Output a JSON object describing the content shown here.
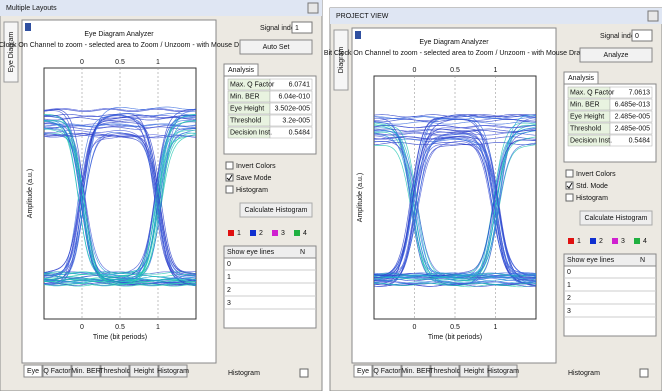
{
  "windows": [
    {
      "title": "Multiple Layouts",
      "side_tab": "Eye Diagram",
      "heading": "Eye Diagram Analyzer",
      "subtitle": "Bit Clock On Channel to zoom - selected area to Zoom / Unzoom - with Mouse Drag",
      "x_ticks": [
        "0",
        "0.5",
        "1"
      ],
      "x_axis_label": "Time (bit periods)",
      "y_axis_label": "Amplitude (a.u.)",
      "signal_index_label": "Signal index",
      "signal_index": "1",
      "button": "Auto Set",
      "analysis_tab": "Analysis",
      "results": [
        [
          "Max. Q Factor",
          "6.0741"
        ],
        [
          "Min. BER",
          "6.04e-010"
        ],
        [
          "Eye Height",
          "3.502e-005"
        ],
        [
          "Threshold",
          "3.2e-005"
        ],
        [
          "Decision Inst.",
          "0.5484"
        ]
      ],
      "checkboxes": [
        "Invert Colors",
        "Save Mode",
        "Histogram"
      ],
      "checked": [
        false,
        true,
        false
      ],
      "histogram_button": "Calculate Histogram",
      "legend": [
        "1",
        "2",
        "3",
        "4"
      ],
      "eye_table_header": [
        "Show eye lines",
        "N"
      ],
      "eye_table_rows": [
        "0",
        "1",
        "2",
        "3"
      ],
      "bottom_checkbox": "Histogram",
      "bottom_tabs": [
        "Eye",
        "Q Factor",
        "Min. BER",
        "Threshold",
        "Height",
        "Histogram"
      ]
    },
    {
      "title": "PROJECT VIEW",
      "side_tab": "Diagram",
      "heading": "Eye Diagram Analyzer",
      "subtitle": "Bit Clock On Channel to zoom - selected area to Zoom / Unzoom - with Mouse Drag",
      "x_ticks": [
        "0",
        "0.5",
        "1"
      ],
      "x_axis_label": "Time (bit periods)",
      "y_axis_label": "Amplitude (a.u.)",
      "signal_index_label": "Signal index",
      "signal_index": "0",
      "button": "Analyze",
      "analysis_tab": "Analysis",
      "results": [
        [
          "Max. Q Factor",
          "7.0613"
        ],
        [
          "Min. BER",
          "6.485e-013"
        ],
        [
          "Eye Height",
          "2.485e-005"
        ],
        [
          "Threshold",
          "2.485e-005"
        ],
        [
          "Decision Inst.",
          "0.5484"
        ]
      ],
      "checkboxes": [
        "Invert Colors",
        "Std. Mode",
        "Histogram"
      ],
      "checked": [
        false,
        true,
        false
      ],
      "histogram_button": "Calculate Histogram",
      "legend": [
        "1",
        "2",
        "3",
        "4"
      ],
      "eye_table_header": [
        "Show eye lines",
        "N"
      ],
      "eye_table_rows": [
        "0",
        "1",
        "2",
        "3"
      ],
      "bottom_checkbox": "Histogram",
      "bottom_tabs": [
        "Eye",
        "Q Factor",
        "Min. BER",
        "Threshold",
        "Height",
        "Histogram"
      ]
    }
  ]
}
